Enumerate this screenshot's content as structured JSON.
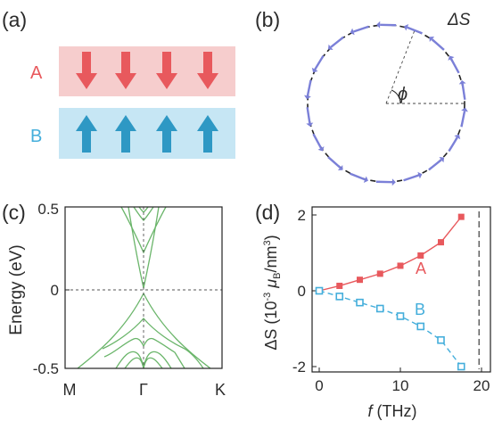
{
  "panels": {
    "a": {
      "label": "(a)",
      "layers": [
        {
          "name": "A",
          "spin": "down",
          "count": 4,
          "band_color": "#f6cdcd",
          "arrow_color": "#e8595d",
          "label_color": "#e8595d"
        },
        {
          "name": "B",
          "spin": "up",
          "count": 4,
          "band_color": "#c6e6f4",
          "arrow_color": "#2e98c4",
          "label_color": "#44aedb"
        }
      ]
    },
    "b": {
      "label": "(b)",
      "quantity": "ΔS",
      "angle_symbol": "ϕ",
      "arrow_color": "#7b80d8",
      "circle_style": "dashed",
      "arrow_count": 18
    },
    "c": {
      "label": "(c)",
      "ylabel": "Energy (eV)",
      "yticks": [
        "0.5",
        "0",
        "-0.5"
      ],
      "xticks": [
        "M",
        "Γ",
        "K"
      ],
      "line_color": "#6ab56a"
    },
    "d": {
      "label": "(d)",
      "ylabel_parts": [
        "ΔS (10",
        "-3",
        " μ",
        "B",
        "/nm",
        "3",
        ")"
      ],
      "xlabel_parts": [
        "f",
        " (THz)"
      ],
      "xticks": [
        "0",
        "10",
        "20"
      ],
      "yticks": [
        "2",
        "0",
        "-2"
      ]
    }
  },
  "chart_data": {
    "type": "line",
    "xlabel": "f (THz)",
    "ylabel": "ΔS (10-3 μB/nm3)",
    "xlim": [
      -1,
      21
    ],
    "ylim": [
      -2.3,
      2.3
    ],
    "x": [
      0,
      2.5,
      5,
      7.5,
      10,
      12.5,
      15,
      17.5
    ],
    "series": [
      {
        "name": "A",
        "color": "#e8595d",
        "marker": "filled-square",
        "linestyle": "solid",
        "values": [
          0,
          0.13,
          0.29,
          0.45,
          0.66,
          0.93,
          1.28,
          1.95
        ]
      },
      {
        "name": "B",
        "color": "#44aedb",
        "marker": "open-square",
        "linestyle": "dashed",
        "values": [
          0,
          -0.15,
          -0.31,
          -0.47,
          -0.67,
          -0.94,
          -1.3,
          -2.0
        ]
      }
    ],
    "vline_x": 19.7,
    "grid": false
  }
}
